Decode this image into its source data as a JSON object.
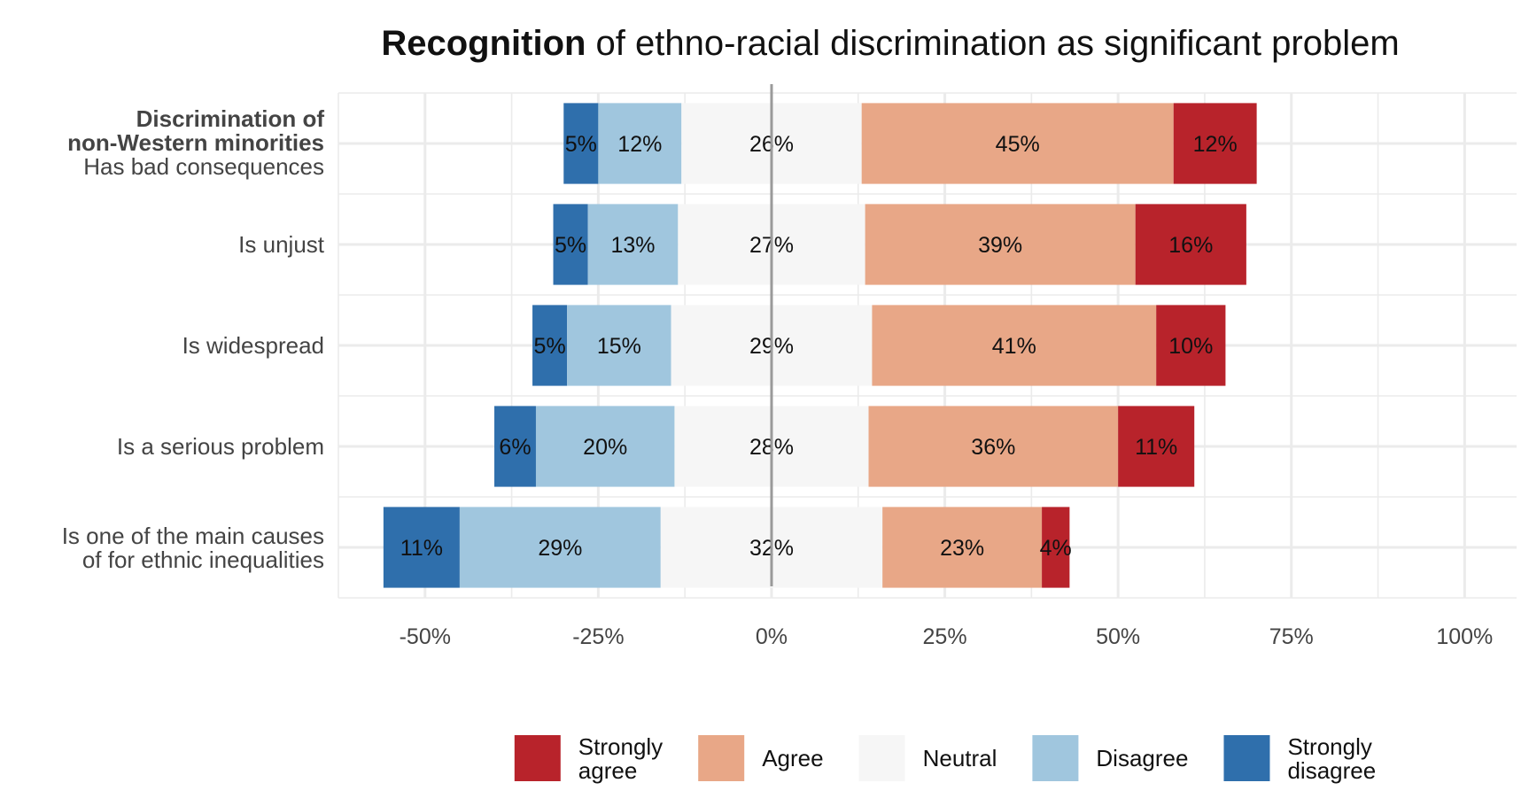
{
  "chart_data": {
    "type": "bar",
    "orientation": "horizontal",
    "stacked": "diverging",
    "title_bold": "Recognition",
    "title_rest": " of ethno-racial discrimination as significant problem",
    "xlabel": "",
    "ylabel": "",
    "xlim": [
      -62.5,
      107.5
    ],
    "x_ticks": [
      -50,
      -25,
      0,
      25,
      50,
      75,
      100
    ],
    "x_tick_labels": [
      "-50%",
      "-25%",
      "0%",
      "25%",
      "50%",
      "75%",
      "100%"
    ],
    "grid": true,
    "legend_position": "bottom",
    "group_label": {
      "line1": "Discrimination of",
      "line2": "non-Western minorities"
    },
    "categories": [
      [
        "Has bad consequences"
      ],
      [
        "Is unjust"
      ],
      [
        "Is widespread"
      ],
      [
        "Is a serious problem"
      ],
      [
        "Is one of the main causes",
        "of for ethnic inequalities"
      ]
    ],
    "series": [
      {
        "name": "Strongly disagree",
        "legend": [
          "Strongly",
          "disagree"
        ],
        "color": "#2f6fac",
        "values": [
          5,
          5,
          5,
          6,
          11
        ],
        "labels": [
          "5%",
          "5%",
          "5%",
          "6%",
          "11%"
        ]
      },
      {
        "name": "Disagree",
        "legend": [
          "Disagree"
        ],
        "color": "#a0c6de",
        "values": [
          12,
          13,
          15,
          20,
          29
        ],
        "labels": [
          "12%",
          "13%",
          "15%",
          "20%",
          "29%"
        ]
      },
      {
        "name": "Neutral",
        "legend": [
          "Neutral"
        ],
        "color": "#f6f6f6",
        "values": [
          26,
          27,
          29,
          28,
          32
        ],
        "labels": [
          "26%",
          "27%",
          "29%",
          "28%",
          "32%"
        ]
      },
      {
        "name": "Agree",
        "legend": [
          "Agree"
        ],
        "color": "#e8a787",
        "values": [
          45,
          39,
          41,
          36,
          23
        ],
        "labels": [
          "45%",
          "39%",
          "41%",
          "36%",
          "23%"
        ]
      },
      {
        "name": "Strongly agree",
        "legend": [
          "Strongly",
          "agree"
        ],
        "color": "#b8232b",
        "values": [
          12,
          16,
          10,
          11,
          4
        ],
        "labels": [
          "12%",
          "16%",
          "10%",
          "11%",
          "4%"
        ]
      }
    ],
    "legend_order": [
      "Strongly agree",
      "Agree",
      "Neutral",
      "Disagree",
      "Strongly disagree"
    ],
    "zero_line_color": "#9a9a9a",
    "grid_color": "#ebebeb"
  }
}
